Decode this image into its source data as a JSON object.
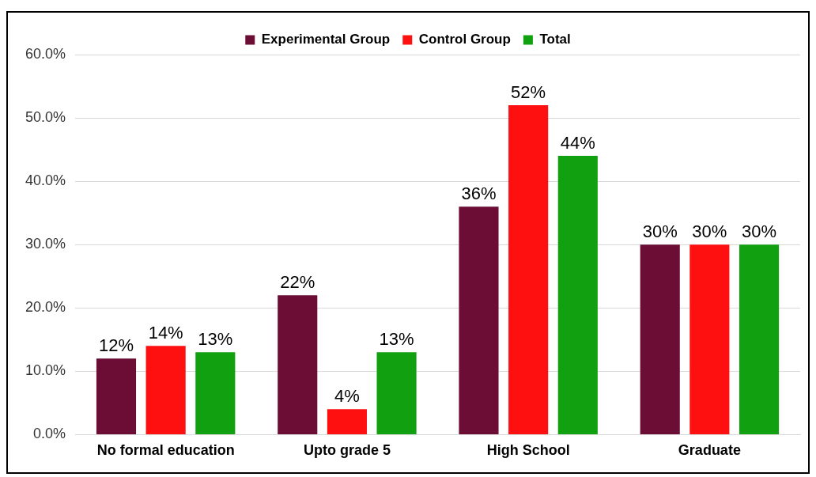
{
  "chart_data": {
    "type": "bar",
    "categories": [
      "No formal education",
      "Upto grade 5",
      "High School",
      "Graduate"
    ],
    "series": [
      {
        "name": "Experimental Group",
        "color": "#6b0d35",
        "values": [
          12,
          22,
          36,
          30
        ],
        "value_labels": [
          "12%",
          "22%",
          "36%",
          "30%"
        ]
      },
      {
        "name": "Control Group",
        "color": "#ff1010",
        "values": [
          14,
          4,
          52,
          30
        ],
        "value_labels": [
          "14%",
          "4%",
          "52%",
          "30%"
        ]
      },
      {
        "name": "Total",
        "color": "#10a010",
        "values": [
          13,
          13,
          44,
          30
        ],
        "value_labels": [
          "13%",
          "13%",
          "44%",
          "30%"
        ]
      }
    ],
    "ylim": [
      0,
      60
    ],
    "yticks": [
      {
        "value": 0,
        "label": "0.0%"
      },
      {
        "value": 10,
        "label": "10.0%"
      },
      {
        "value": 20,
        "label": "20.0%"
      },
      {
        "value": 30,
        "label": "30.0%"
      },
      {
        "value": 40,
        "label": "40.0%"
      },
      {
        "value": 50,
        "label": "50.0%"
      },
      {
        "value": 60,
        "label": "60.0%"
      }
    ],
    "grid": "y",
    "legend": "top"
  }
}
